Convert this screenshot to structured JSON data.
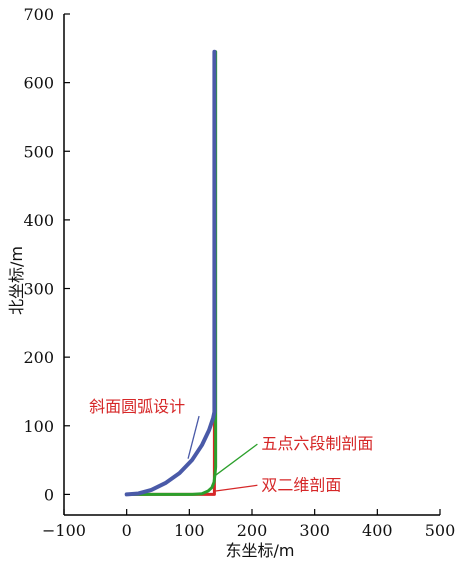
{
  "chart_data": {
    "type": "line",
    "xlabel": "东坐标/m",
    "ylabel": "北坐标/m",
    "xlim": [
      -100,
      500
    ],
    "ylim": [
      -30,
      700
    ],
    "xticks": [
      -100,
      0,
      100,
      200,
      300,
      400,
      500
    ],
    "yticks": [
      0,
      100,
      200,
      300,
      400,
      500,
      600,
      700
    ],
    "grid": false,
    "series": [
      {
        "name": "双二维剖面",
        "color": "#d62728",
        "x": [
          0,
          140,
          140,
          140
        ],
        "y": [
          0,
          0,
          120,
          645
        ]
      },
      {
        "name": "五点六段制剖面",
        "color": "#2ca02c",
        "x": [
          0,
          105,
          120,
          130,
          136,
          139.5,
          141,
          142,
          142
        ],
        "y": [
          0,
          0,
          1,
          5,
          10,
          18,
          30,
          40,
          645
        ]
      },
      {
        "name": "斜面圆弧设计",
        "color": "#4a5aa8",
        "x": [
          0,
          18.8,
          39.4,
          61.8,
          84.3,
          104.6,
          120.4,
          131.5,
          138.0,
          140,
          140
        ],
        "y": [
          0,
          1.4,
          6.5,
          16.5,
          31.0,
          50.4,
          72.3,
          93.7,
          111.4,
          120,
          645
        ]
      }
    ],
    "annotations": [
      {
        "text": "斜面圆弧设计",
        "series": "斜面圆弧设计",
        "point": [
          98,
          52
        ],
        "text_at": [
          -60,
          120
        ],
        "color": "#d62728"
      },
      {
        "text": "五点六段制剖面",
        "series": "五点六段制剖面",
        "point": [
          142,
          28
        ],
        "text_at": [
          215,
          66
        ],
        "color": "#d62728"
      },
      {
        "text": "双二维剖面",
        "series": "双二维剖面",
        "point": [
          142,
          5
        ],
        "text_at": [
          215,
          6
        ],
        "color": "#d62728"
      }
    ]
  }
}
